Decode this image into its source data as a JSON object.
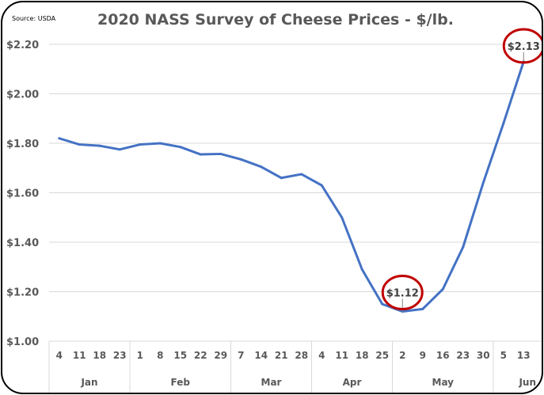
{
  "chart_data": {
    "type": "line",
    "title": "2020 NASS Survey of Cheese Prices - $/lb.",
    "source": "Source: USDA",
    "xlabel": "",
    "ylabel": "",
    "ylim": [
      1.0,
      2.2
    ],
    "yticks": [
      "$1.00",
      "$1.20",
      "$1.40",
      "$1.60",
      "$1.80",
      "$2.00",
      "$2.20"
    ],
    "grid": true,
    "categories": [
      "4",
      "11",
      "18",
      "23",
      "1",
      "8",
      "15",
      "22",
      "29",
      "7",
      "14",
      "21",
      "28",
      "4",
      "11",
      "18",
      "25",
      "2",
      "9",
      "16",
      "23",
      "30",
      "5",
      "13"
    ],
    "month_groups": [
      {
        "label": "Jan",
        "count": 4
      },
      {
        "label": "Feb",
        "count": 5
      },
      {
        "label": "Mar",
        "count": 4
      },
      {
        "label": "Apr",
        "count": 4
      },
      {
        "label": "May",
        "count": 5
      },
      {
        "label": "Jun",
        "count": 2
      }
    ],
    "values": [
      1.82,
      1.795,
      1.79,
      1.775,
      1.795,
      1.8,
      1.785,
      1.755,
      1.757,
      1.735,
      1.705,
      1.66,
      1.675,
      1.63,
      1.5,
      1.29,
      1.15,
      1.12,
      1.13,
      1.21,
      1.38,
      1.64,
      1.88,
      2.13
    ],
    "line_color": "#4472C4",
    "annotations": [
      {
        "label": "$1.12",
        "index": 17,
        "circle_color": "#C00000"
      },
      {
        "label": "$2.13",
        "index": 23,
        "circle_color": "#C00000"
      }
    ]
  }
}
